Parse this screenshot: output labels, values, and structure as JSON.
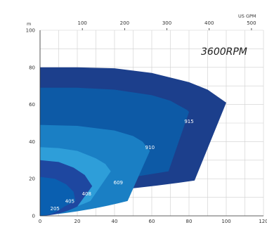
{
  "chart_data": {
    "type": "area",
    "title": "",
    "speed_label": "3600RPM",
    "ylabel": "m",
    "x2label": "US GPM",
    "xlim": [
      0,
      120
    ],
    "ylim": [
      0,
      100
    ],
    "x_ticks": [
      0,
      20,
      40,
      60,
      80,
      100,
      120
    ],
    "y_ticks": [
      0,
      20,
      40,
      60,
      80,
      100
    ],
    "x2_ticks": [
      100,
      200,
      300,
      400,
      500
    ],
    "grid": true,
    "series": [
      {
        "name": "915",
        "color": "#1c3f8c",
        "top": [
          [
            0,
            80
          ],
          [
            20,
            80
          ],
          [
            40,
            79.5
          ],
          [
            60,
            77
          ],
          [
            80,
            72
          ],
          [
            90,
            68
          ],
          [
            100,
            61
          ]
        ],
        "bottom": [
          [
            83,
            19
          ],
          [
            100,
            61
          ]
        ],
        "label_pos": [
          80,
          50
        ]
      },
      {
        "name": "910",
        "color": "#0d5aa6",
        "top": [
          [
            0,
            69
          ],
          [
            20,
            69
          ],
          [
            40,
            68
          ],
          [
            60,
            65
          ],
          [
            70,
            62
          ],
          [
            79,
            57
          ],
          [
            80,
            56
          ]
        ],
        "bottom": [
          [
            69,
            24
          ],
          [
            80,
            56
          ]
        ],
        "label_pos": [
          59,
          36
        ]
      },
      {
        "name": "609",
        "color": "#1a7fc4",
        "top": [
          [
            0,
            49
          ],
          [
            20,
            48.5
          ],
          [
            40,
            46
          ],
          [
            50,
            43
          ],
          [
            55,
            40
          ],
          [
            59,
            35
          ]
        ],
        "bottom": [
          [
            47,
            8
          ],
          [
            59,
            35
          ]
        ],
        "label_pos": [
          42,
          17
        ]
      },
      {
        "name": "408",
        "color": "#2e9ed9",
        "top": [
          [
            0,
            37
          ],
          [
            10,
            36.5
          ],
          [
            20,
            35
          ],
          [
            30,
            31
          ],
          [
            35,
            28
          ],
          [
            38,
            24
          ]
        ],
        "bottom": [
          [
            27,
            8
          ],
          [
            38,
            24
          ]
        ],
        "label_pos": [
          25,
          11
        ]
      },
      {
        "name": "405",
        "color": "#1e47a0",
        "top": [
          [
            0,
            30
          ],
          [
            10,
            29
          ],
          [
            18,
            26
          ],
          [
            24,
            22
          ],
          [
            28,
            16
          ]
        ],
        "bottom": [
          [
            20,
            5
          ],
          [
            28,
            16
          ]
        ],
        "label_pos": [
          16,
          7
        ]
      },
      {
        "name": "205",
        "color": "#0a5fb0",
        "top": [
          [
            0,
            21
          ],
          [
            8,
            20
          ],
          [
            14,
            17
          ],
          [
            18,
            13
          ],
          [
            19,
            8
          ]
        ],
        "bottom": [
          [
            13,
            5
          ],
          [
            19,
            8
          ]
        ],
        "label_pos": [
          8,
          3
        ]
      }
    ]
  }
}
